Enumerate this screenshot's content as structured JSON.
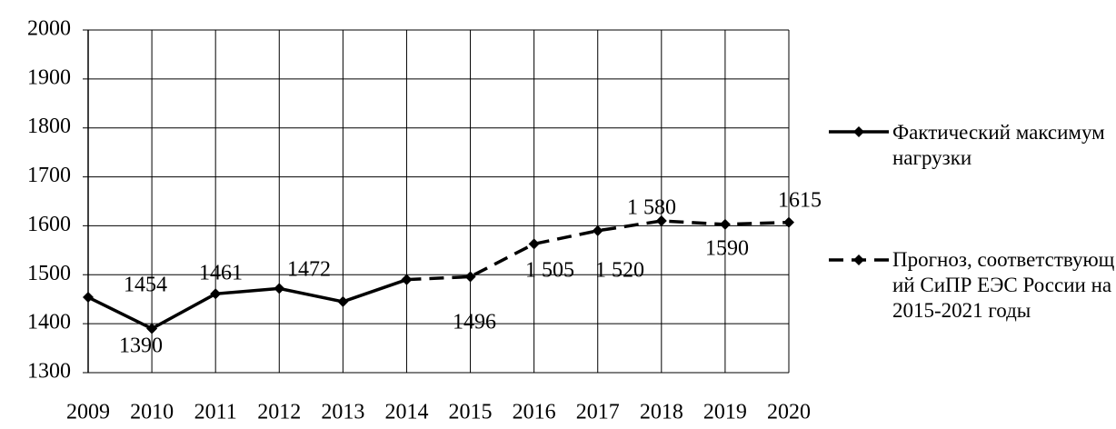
{
  "chart_data": {
    "type": "line",
    "categories": [
      "2009",
      "2010",
      "2011",
      "2012",
      "2013",
      "2014",
      "2015",
      "2016",
      "2017",
      "2018",
      "2019",
      "2020"
    ],
    "series": [
      {
        "name": "Фактический максимум нагрузки",
        "color": "#000000",
        "dash": false,
        "values": [
          1454,
          1390,
          1461,
          1472,
          1445,
          1490,
          null,
          null,
          null,
          null,
          null,
          null
        ]
      },
      {
        "name": "Прогноз, соответствующий СиПР ЕЭС России на 2015-2021 годы",
        "color": "#000000",
        "dash": true,
        "values": [
          null,
          null,
          null,
          null,
          null,
          1490,
          1496,
          1563,
          1590,
          1610,
          1603,
          1607
        ]
      }
    ],
    "annotations": [
      "1454",
      "1390",
      "1461",
      "1472",
      "1496",
      "1 505",
      "1 520",
      "1 580",
      "1590",
      "1615"
    ],
    "ylim": [
      1300,
      2000
    ],
    "yticks": [
      1300,
      1400,
      1500,
      1600,
      1700,
      1800,
      1900,
      2000
    ],
    "grid": true,
    "legend": "right"
  }
}
